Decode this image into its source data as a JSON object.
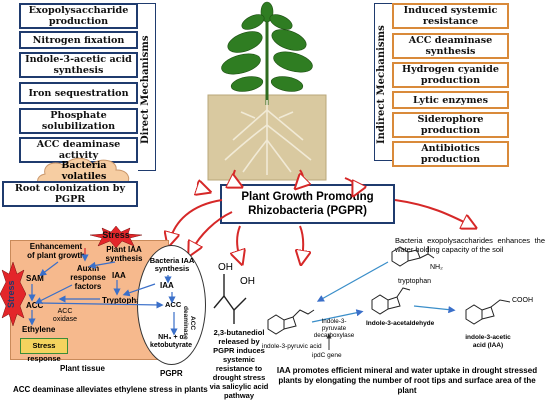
{
  "direct": {
    "label": "Direct Mechanisms",
    "items": [
      "Exopolysaccharide production",
      "Nitrogen fixation",
      "Indole-3-acetic acid synthesis",
      "Iron sequestration",
      "Phosphate solubilization",
      "ACC deaminase activity"
    ]
  },
  "indirect": {
    "label": "Indirect Mechanisms",
    "items": [
      "Induced systemic resistance",
      "ACC deaminase synthesis",
      "Hydrogen cyanide production",
      "Lytic enzymes",
      "Siderophore production",
      "Antibiotics production"
    ]
  },
  "cloud": {
    "text": "Bacteria volatiles"
  },
  "root_colonization": "Root colonization by PGPR",
  "pgpr_title": "Plant Growth Promoting Rhizobacteria (PGPR)",
  "panel1": {
    "stress_top": "Stress",
    "stress_left": "Stress",
    "enhancement": "Enhancement of plant growth",
    "plant_iaa": "Plant IAA synthesis",
    "auxin": "Auxin response factors",
    "iaa1": "IAA",
    "sam": "SAM",
    "acc": "ACC",
    "acc_oxidase": "ACC oxidase",
    "ethylene": "Ethylene",
    "tryptophan": "Tryptophan",
    "stress_response": "Stress response",
    "plant_tissue": "Plant tissue",
    "bacteria_iaa": "Bacteria IAA synthesis",
    "iaa2": "IAA",
    "acc2": "ACC",
    "acc_deaminase": "ACC deaminase",
    "nh3": "NH₃ + α ketobutyrate",
    "pgpr": "PGPR",
    "caption": "ACC deaminase alleviates ethylene stress in plants"
  },
  "butanediol": {
    "oh1": "OH",
    "oh2": "OH",
    "text": "2,3-butanediol released by PGPR induces systemic resistance to drought stress via salicylic acid pathway"
  },
  "eps_text": "Bacteria exopolysaccharides enhances the water holding capacity of the soil",
  "chem": {
    "tryptophan": "tryptophan",
    "nh2": "NH₂",
    "pyruvic": "indole-3-pyruvic acid",
    "decarboxylase": "Indole-3-pyruvate decarboxylase",
    "ipdc": "ipdC gene",
    "acetaldehyde": "Indole-3-acetaldehyde",
    "iaa": "indole-3-acetic acid (IAA)",
    "cooh": "COOH"
  },
  "iaa_caption": "IAA promotes efficient mineral and water uptake in drought stressed plants by elongating the number of root tips and surface area of the plant",
  "colors": {
    "direct_border": "#1f3b6e",
    "indirect_border": "#d98a3a",
    "arrow": "#d62828",
    "panel": "#f6b98d"
  }
}
